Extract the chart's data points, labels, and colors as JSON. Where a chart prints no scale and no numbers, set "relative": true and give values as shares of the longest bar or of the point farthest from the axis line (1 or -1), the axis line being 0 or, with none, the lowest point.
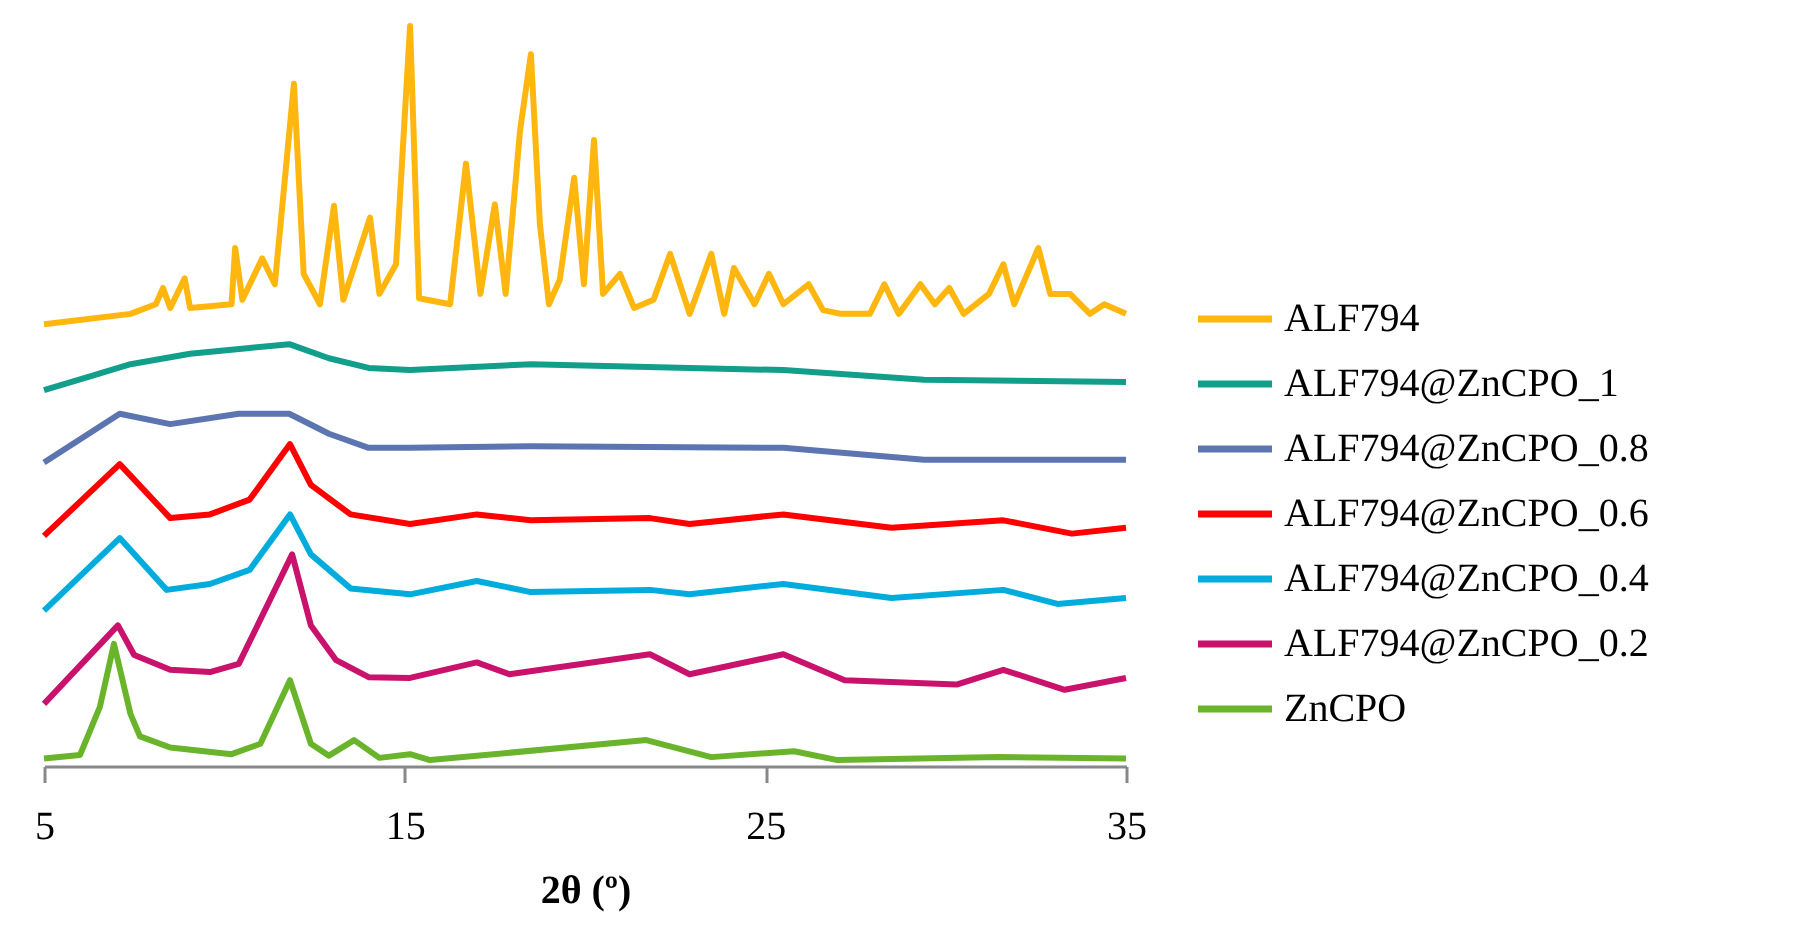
{
  "chart_data": {
    "type": "line",
    "relative": true,
    "xlabel": "2θ (º)",
    "xlim": [
      5,
      35
    ],
    "xticks": [
      5,
      15,
      25,
      35
    ],
    "grid": false,
    "legend": "right",
    "series": [
      {
        "name": "ALF794",
        "color": "#ffb710",
        "x": [
          5,
          7.4,
          8.1,
          8.3,
          8.5,
          8.9,
          9.05,
          10.2,
          10.3,
          10.5,
          11.05,
          11.4,
          11.93,
          12.2,
          12.65,
          13.04,
          13.3,
          14.04,
          14.3,
          14.76,
          15.15,
          15.4,
          16.26,
          16.7,
          17.1,
          17.5,
          17.8,
          18.2,
          18.5,
          18.75,
          19.0,
          19.3,
          19.7,
          19.97,
          20.25,
          20.5,
          20.97,
          21.36,
          21.9,
          22.36,
          22.9,
          23.2,
          23.5,
          23.86,
          24.13,
          24.7,
          25.1,
          25.5,
          26.2,
          26.6,
          27.1,
          27.9,
          28.3,
          28.7,
          29.3,
          29.7,
          30.1,
          30.5,
          31.2,
          31.6,
          31.9,
          32.57,
          32.9,
          33.45,
          34.0,
          34.4,
          35
        ],
        "values": [
          0.597,
          0.611,
          0.624,
          0.646,
          0.619,
          0.659,
          0.619,
          0.624,
          0.7,
          0.63,
          0.686,
          0.651,
          0.922,
          0.665,
          0.624,
          0.757,
          0.63,
          0.741,
          0.638,
          0.678,
          1.0,
          0.632,
          0.624,
          0.814,
          0.638,
          0.759,
          0.638,
          0.859,
          0.962,
          0.732,
          0.624,
          0.657,
          0.795,
          0.651,
          0.846,
          0.638,
          0.665,
          0.619,
          0.63,
          0.692,
          0.611,
          0.651,
          0.692,
          0.611,
          0.673,
          0.624,
          0.665,
          0.624,
          0.651,
          0.616,
          0.611,
          0.611,
          0.651,
          0.611,
          0.651,
          0.624,
          0.646,
          0.611,
          0.638,
          0.678,
          0.624,
          0.7,
          0.638,
          0.638,
          0.611,
          0.624,
          0.611
        ]
      },
      {
        "name": "ALF794@ZnCPO_1",
        "color": "#119e8a",
        "x": [
          5,
          6.3,
          7.4,
          9.05,
          10.7,
          11.8,
          12.9,
          14.0,
          15.15,
          18.5,
          25.5,
          29.4,
          35
        ],
        "values": [
          0.508,
          0.527,
          0.543,
          0.557,
          0.565,
          0.57,
          0.551,
          0.538,
          0.535,
          0.543,
          0.535,
          0.522,
          0.519
        ]
      },
      {
        "name": "ALF794@ZnCPO_0.8",
        "color": "#5c74b0",
        "x": [
          5,
          7.1,
          8.5,
          10.4,
          11.8,
          12.9,
          14.0,
          15.15,
          18.5,
          25.5,
          29.4,
          35
        ],
        "values": [
          0.41,
          0.476,
          0.462,
          0.476,
          0.476,
          0.449,
          0.43,
          0.43,
          0.432,
          0.43,
          0.414,
          0.414
        ]
      },
      {
        "name": "ALF794@ZnCPO_0.6",
        "color": "#ff0000",
        "x": [
          5,
          7.1,
          8.5,
          9.6,
          10.7,
          11.82,
          12.4,
          13.5,
          15.15,
          17,
          18.5,
          21.8,
          22.9,
          25.5,
          28.5,
          31.6,
          33.5,
          35
        ],
        "values": [
          0.311,
          0.408,
          0.335,
          0.34,
          0.36,
          0.435,
          0.38,
          0.34,
          0.327,
          0.34,
          0.332,
          0.335,
          0.327,
          0.34,
          0.322,
          0.332,
          0.314,
          0.322
        ]
      },
      {
        "name": "ALF794@ZnCPO_0.4",
        "color": "#00acdc",
        "x": [
          5,
          7.1,
          8.4,
          9.6,
          10.7,
          11.82,
          12.4,
          13.5,
          15.15,
          17,
          18.5,
          21.8,
          22.9,
          25.5,
          28.5,
          31.6,
          33.1,
          35
        ],
        "values": [
          0.21,
          0.308,
          0.238,
          0.246,
          0.265,
          0.34,
          0.286,
          0.24,
          0.232,
          0.25,
          0.235,
          0.238,
          0.232,
          0.246,
          0.227,
          0.238,
          0.219,
          0.227
        ]
      },
      {
        "name": "ALF794@ZnCPO_0.2",
        "color": "#c8126c",
        "x": [
          5,
          7.05,
          7.5,
          8.5,
          9.6,
          10.4,
          11.88,
          12.4,
          13.1,
          14.0,
          15.15,
          17.0,
          17.9,
          21.8,
          22.9,
          25.5,
          27.2,
          30.3,
          31.6,
          33.3,
          35
        ],
        "values": [
          0.084,
          0.19,
          0.15,
          0.13,
          0.127,
          0.138,
          0.286,
          0.19,
          0.143,
          0.12,
          0.119,
          0.14,
          0.124,
          0.151,
          0.124,
          0.151,
          0.116,
          0.11,
          0.13,
          0.103,
          0.119
        ]
      },
      {
        "name": "ZnCPO",
        "color": "#6ab42c",
        "x": [
          5,
          6.0,
          6.55,
          6.94,
          7.4,
          7.66,
          8.5,
          10.2,
          11.0,
          11.82,
          12.4,
          12.9,
          13.6,
          14.3,
          15.15,
          15.7,
          21.7,
          23.5,
          25.8,
          27,
          31.5,
          35
        ],
        "values": [
          0.01,
          0.015,
          0.08,
          0.165,
          0.07,
          0.04,
          0.025,
          0.016,
          0.03,
          0.116,
          0.03,
          0.014,
          0.035,
          0.011,
          0.016,
          0.008,
          0.035,
          0.012,
          0.02,
          0.008,
          0.012,
          0.01
        ]
      }
    ]
  }
}
